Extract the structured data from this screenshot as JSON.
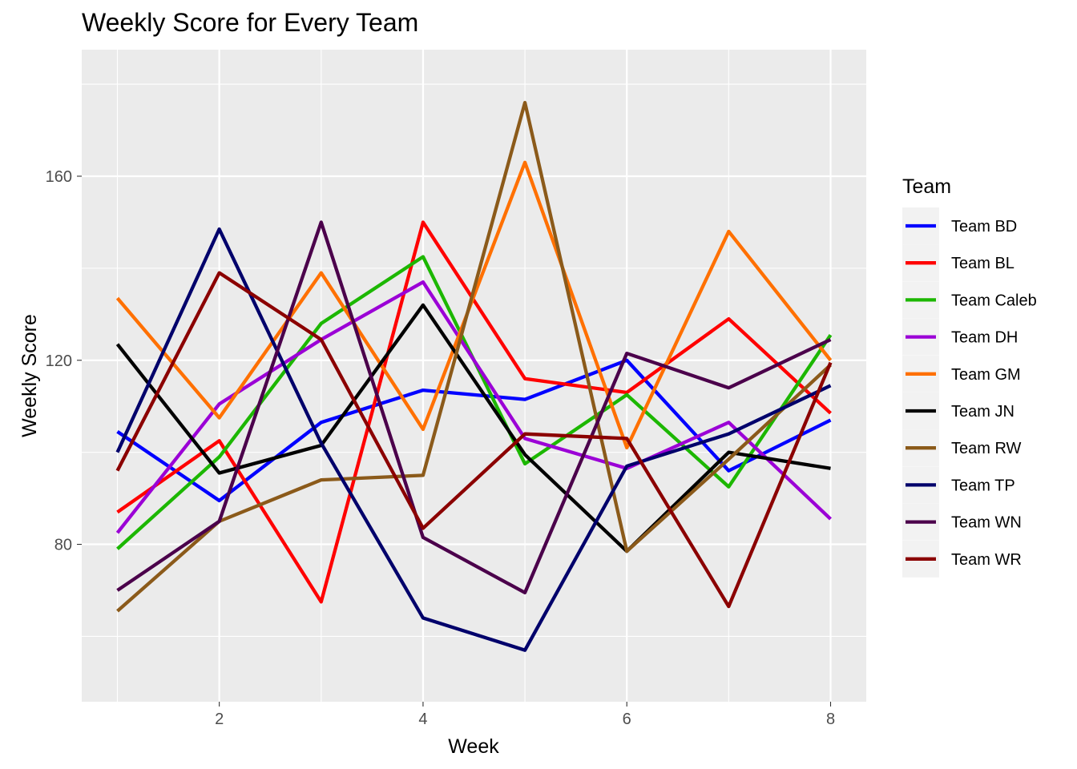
{
  "chart_data": {
    "type": "line",
    "title": "Weekly Score for Every Team",
    "xlabel": "Week",
    "ylabel": "Weekly Score",
    "xlim": [
      0.65,
      8.35
    ],
    "ylim": [
      45.8,
      187.5
    ],
    "x_ticks": [
      2,
      4,
      6,
      8
    ],
    "y_ticks": [
      80,
      120,
      160
    ],
    "x_minor": [
      1,
      3,
      5,
      7
    ],
    "y_minor": [
      60,
      100,
      140,
      180
    ],
    "grid": true,
    "legend_title": "Team",
    "legend_position": "right",
    "x": [
      1,
      2,
      3,
      4,
      5,
      6,
      7,
      8
    ],
    "series": [
      {
        "name": "Team BD",
        "color": "#0000ff",
        "values": [
          104.5,
          89.5,
          106.5,
          113.5,
          111.5,
          120.0,
          96.0,
          107.0
        ]
      },
      {
        "name": "Team BL",
        "color": "#ff0000",
        "values": [
          87.0,
          102.5,
          67.5,
          150.0,
          116.0,
          113.0,
          129.0,
          108.5
        ]
      },
      {
        "name": "Team Caleb",
        "color": "#1cb700",
        "values": [
          79.0,
          99.0,
          128.0,
          142.5,
          97.5,
          112.5,
          92.5,
          125.5
        ]
      },
      {
        "name": "Team DH",
        "color": "#9b00d6",
        "values": [
          82.5,
          110.5,
          124.5,
          137.0,
          103.0,
          96.5,
          106.5,
          85.5
        ]
      },
      {
        "name": "Team GM",
        "color": "#ff7000",
        "values": [
          133.5,
          107.5,
          139.0,
          105.0,
          163.0,
          101.0,
          148.0,
          120.0
        ]
      },
      {
        "name": "Team JN",
        "color": "#000000",
        "values": [
          123.5,
          95.5,
          101.5,
          132.0,
          99.5,
          78.5,
          100.0,
          96.5
        ]
      },
      {
        "name": "Team RW",
        "color": "#8b5a1a",
        "values": [
          65.5,
          85.0,
          94.0,
          95.0,
          176.0,
          78.5,
          98.5,
          119.0
        ]
      },
      {
        "name": "Team TP",
        "color": "#00006b",
        "values": [
          100.0,
          148.5,
          102.0,
          64.0,
          57.0,
          97.0,
          104.0,
          114.5
        ]
      },
      {
        "name": "Team WN",
        "color": "#4b004b",
        "values": [
          70.0,
          85.0,
          150.0,
          81.5,
          69.5,
          121.5,
          114.0,
          124.5
        ]
      },
      {
        "name": "Team WR",
        "color": "#8b0000",
        "values": [
          96.0,
          139.0,
          124.5,
          83.5,
          104.0,
          103.0,
          66.5,
          119.5
        ]
      }
    ]
  }
}
